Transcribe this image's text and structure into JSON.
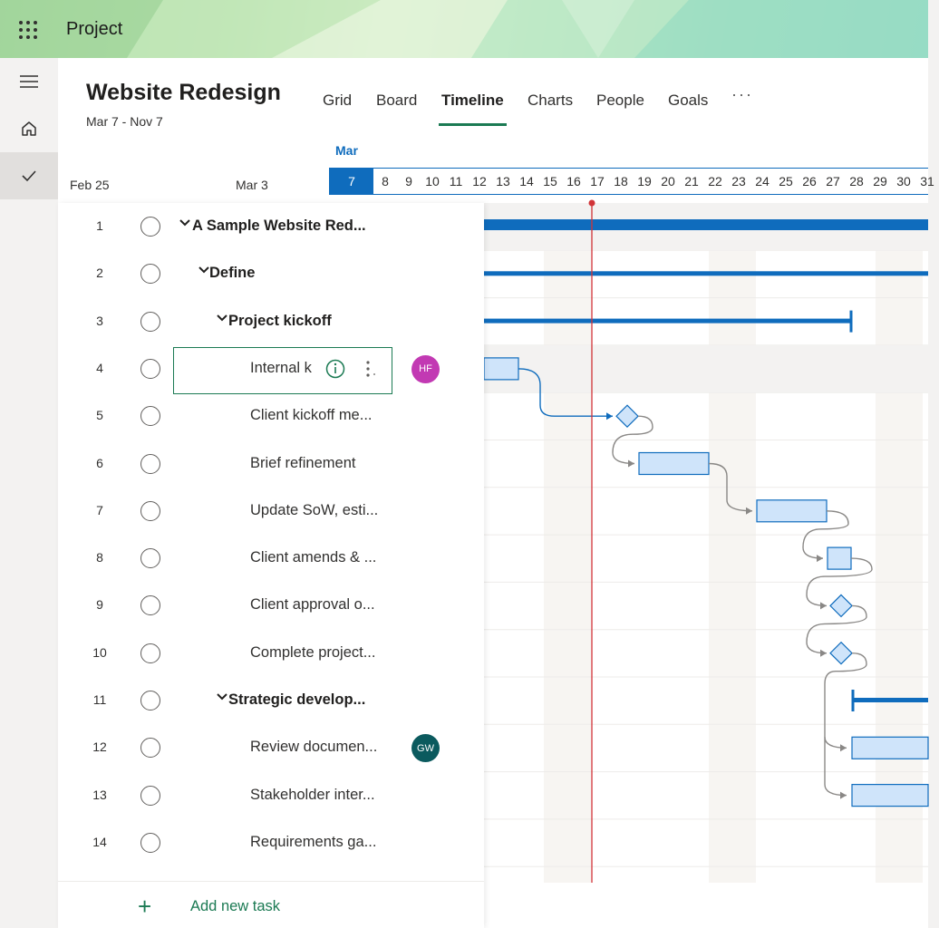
{
  "app": {
    "title": "Project"
  },
  "project": {
    "title": "Website Redesign",
    "dates": "Mar 7 - Nov 7"
  },
  "tabs": [
    {
      "label": "Grid"
    },
    {
      "label": "Board"
    },
    {
      "label": "Timeline",
      "active": true
    },
    {
      "label": "Charts"
    },
    {
      "label": "People"
    },
    {
      "label": "Goals"
    }
  ],
  "more_label": "···",
  "timescale": {
    "weeks": [
      "Feb 25",
      "Mar 3"
    ],
    "month": "Mar",
    "days": [
      "7",
      "8",
      "9",
      "10",
      "11",
      "12",
      "13",
      "14",
      "15",
      "16",
      "17",
      "18",
      "19",
      "20",
      "21",
      "22",
      "23",
      "24",
      "25",
      "26",
      "27",
      "28",
      "29",
      "30",
      "31"
    ],
    "today": "7",
    "current_marker_day": "17"
  },
  "tasks": [
    {
      "num": "1",
      "name": "A Sample Website Red...",
      "level": 0,
      "summary": true
    },
    {
      "num": "2",
      "name": "Define",
      "level": 1,
      "summary": true
    },
    {
      "num": "3",
      "name": "Project kickoff",
      "level": 2,
      "summary": true
    },
    {
      "num": "4",
      "name": "Internal k",
      "level": 3,
      "editing": true,
      "avatar": "HF"
    },
    {
      "num": "5",
      "name": "Client kickoff me...",
      "level": 3
    },
    {
      "num": "6",
      "name": "Brief refinement",
      "level": 3
    },
    {
      "num": "7",
      "name": "Update SoW, esti...",
      "level": 3
    },
    {
      "num": "8",
      "name": "Client amends & ...",
      "level": 3
    },
    {
      "num": "9",
      "name": "Client approval o...",
      "level": 3
    },
    {
      "num": "10",
      "name": "Complete project...",
      "level": 3
    },
    {
      "num": "11",
      "name": "Strategic develop...",
      "level": 2,
      "summary": true
    },
    {
      "num": "12",
      "name": "Review documen...",
      "level": 3,
      "avatar": "GW"
    },
    {
      "num": "13",
      "name": "Stakeholder inter...",
      "level": 3
    },
    {
      "num": "14",
      "name": "Requirements ga...",
      "level": 3
    }
  ],
  "avatars": {
    "HF": {
      "initials": "HF",
      "color": "#c239b3"
    },
    "GW": {
      "initials": "GW",
      "color": "#0b5a5e"
    }
  },
  "add_task_label": "Add new task",
  "colors": {
    "accent": "#1b7a53",
    "brand_blue": "#0f6cbd",
    "bar_fill": "#cfe4fa",
    "today_line": "#d13438"
  }
}
